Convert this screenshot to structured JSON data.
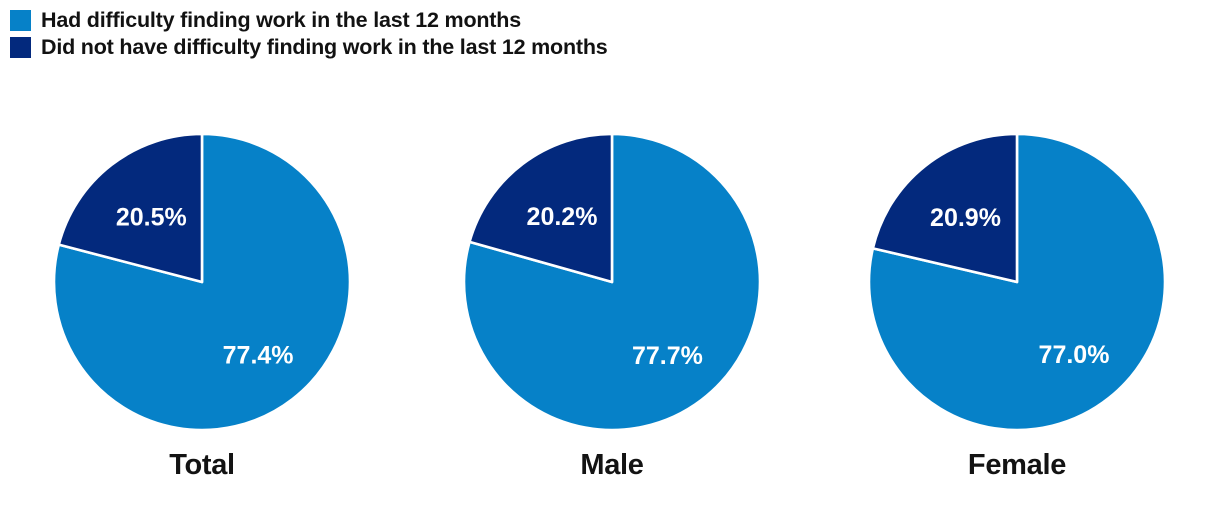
{
  "page": {
    "background_color": "#ffffff"
  },
  "legend": {
    "position": "top-left"
  },
  "chart_data": {
    "type": "pie",
    "chart_count": 3,
    "series": [
      {
        "name": "Had difficulty finding work in the last 12 months",
        "color": "#0681c8"
      },
      {
        "name": "Did not have difficulty finding work in the last 12 months",
        "color": "#03297d"
      }
    ],
    "pies": [
      {
        "title": "Total",
        "values": [
          77.4,
          20.5
        ],
        "value_labels": [
          "77.4%",
          "20.5%"
        ]
      },
      {
        "title": "Male",
        "values": [
          77.7,
          20.2
        ],
        "value_labels": [
          "77.7%",
          "20.2%"
        ]
      },
      {
        "title": "Female",
        "values": [
          77.0,
          20.9
        ],
        "value_labels": [
          "77.0%",
          "20.9%"
        ]
      }
    ],
    "start_angle_deg": 0,
    "direction": "clockwise",
    "slice_border_color": "#ffffff",
    "value_label_color": "#ffffff",
    "legend_position": "top-left"
  }
}
